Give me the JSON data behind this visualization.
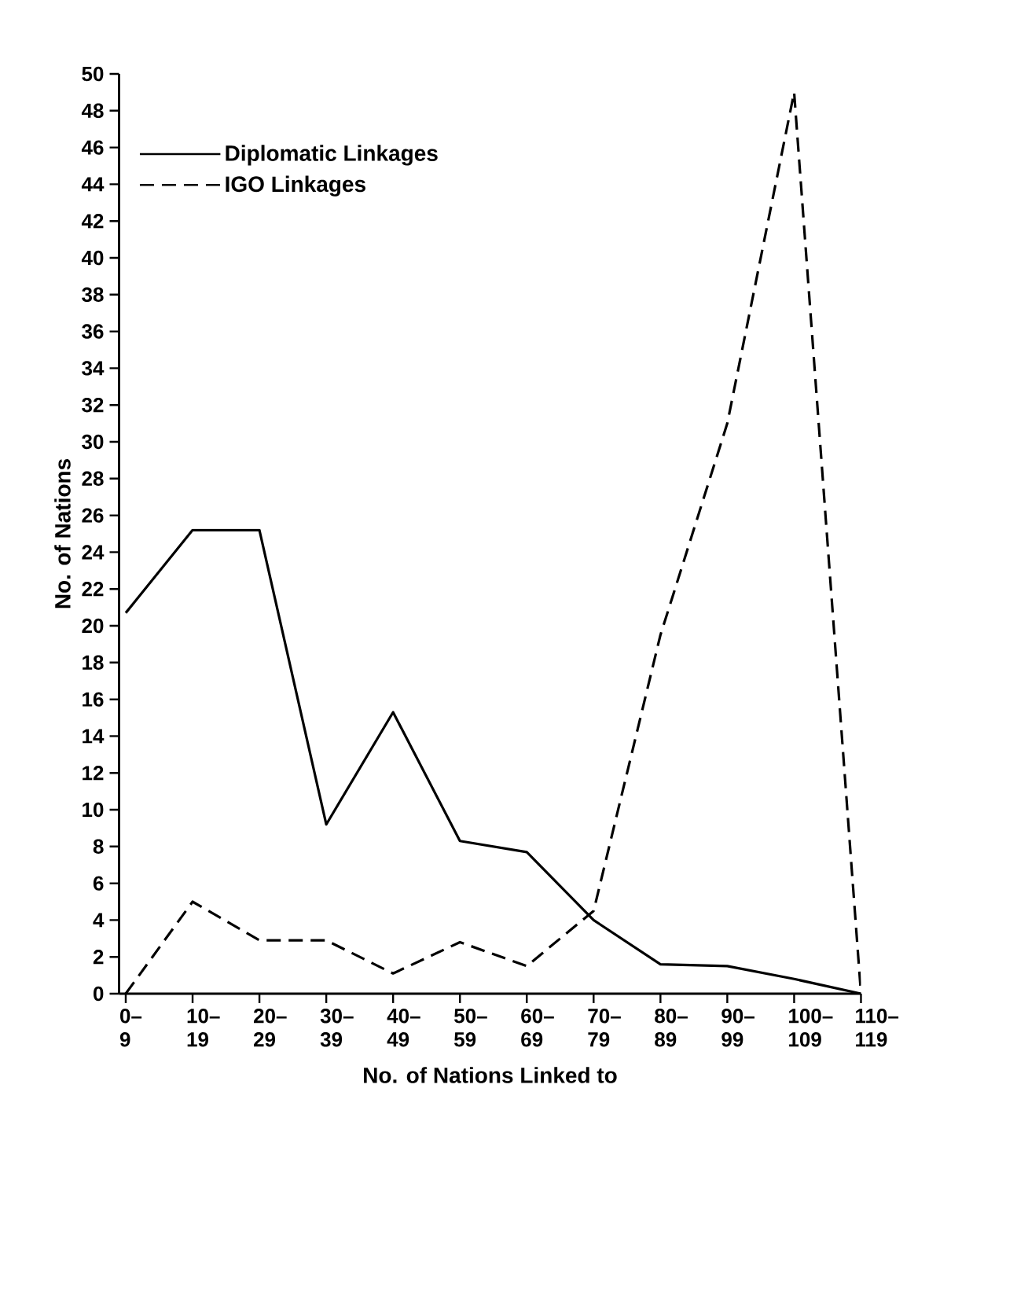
{
  "chart_data": {
    "type": "line",
    "xlabel": "No. of Nations Linked to",
    "ylabel": "No. of Nations",
    "categories": [
      "0– 9",
      "10– 19",
      "20– 29",
      "30– 39",
      "40– 49",
      "50– 59",
      "60– 69",
      "70– 79",
      "80– 89",
      "90– 99",
      "100– 109",
      "110– 119"
    ],
    "series": [
      {
        "name": "Diplomatic Linkages",
        "color": "#000000",
        "line_style": "solid",
        "values": [
          20.7,
          25.2,
          25.2,
          9.2,
          15.3,
          8.3,
          7.7,
          4.0,
          1.6,
          1.5,
          0.8,
          0
        ]
      },
      {
        "name": "IGO Linkages",
        "color": "#000000",
        "line_style": "dashed",
        "values": [
          0,
          5,
          2.9,
          2.9,
          1.1,
          2.8,
          1.5,
          4.5,
          19.5,
          31,
          49,
          0
        ]
      }
    ],
    "ylim": [
      0,
      50
    ],
    "yticks": [
      0,
      2,
      4,
      6,
      8,
      10,
      12,
      14,
      16,
      18,
      20,
      22,
      24,
      26,
      28,
      30,
      32,
      34,
      36,
      38,
      40,
      42,
      44,
      46,
      48,
      50
    ],
    "grid": false,
    "legend": "top left",
    "marker": "none"
  }
}
